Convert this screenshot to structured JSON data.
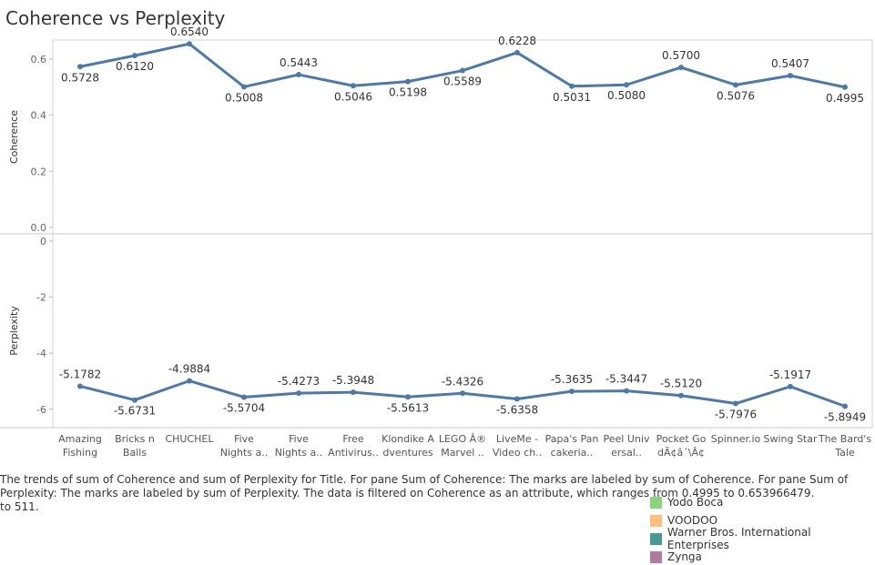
{
  "title": "Coherence vs Perplexity",
  "chart_data": {
    "type": "line",
    "categories": [
      [
        "Amazing",
        "Fishing"
      ],
      [
        "Bricks n",
        "Balls"
      ],
      [
        "CHUCHEL"
      ],
      [
        "Five",
        "Nights a.."
      ],
      [
        "Five",
        "Nights a.."
      ],
      [
        "Free",
        "Antivirus.."
      ],
      [
        "Klondike A",
        "dventures"
      ],
      [
        "LEGO Â®",
        "Marvel .."
      ],
      [
        "LiveMe -",
        "Video ch.."
      ],
      [
        "Papa's Pan",
        "cakeria.."
      ],
      [
        "Peel Univ",
        "ersal.."
      ],
      [
        "Pocket Go",
        "dÃ¢â´\\Â¢"
      ],
      [
        "Spinner.io"
      ],
      [
        "Swing Star"
      ],
      [
        "The Bard's",
        "Tale"
      ]
    ],
    "panes": [
      {
        "axis_title": "Coherence",
        "ylim": [
          0,
          0.7
        ],
        "ticks": [
          "0.0",
          "0.2",
          "0.4",
          "0.6"
        ],
        "tick_values": [
          0,
          0.2,
          0.4,
          0.6
        ],
        "values": [
          0.5728,
          0.612,
          0.654,
          0.5008,
          0.5443,
          0.5046,
          0.5198,
          0.5589,
          0.6228,
          0.5031,
          0.508,
          0.57,
          0.5076,
          0.5407,
          0.4995
        ],
        "labels": [
          "0.5728",
          "0.6120",
          "0.6540",
          "0.5008",
          "0.5443",
          "0.5046",
          "0.5198",
          "0.5589",
          "0.6228",
          "0.5031",
          "0.5080",
          "0.5700",
          "0.5076",
          "0.5407",
          "0.4995"
        ],
        "label_pos": [
          "below",
          "below",
          "above",
          "below",
          "above",
          "below",
          "below",
          "below",
          "above",
          "below",
          "below",
          "above",
          "below",
          "above",
          "below"
        ]
      },
      {
        "axis_title": "Perplexity",
        "ylim": [
          -6.3,
          0
        ],
        "ticks": [
          "0",
          "-2",
          "-4",
          "-6"
        ],
        "tick_values": [
          0,
          -2,
          -4,
          -6
        ],
        "values": [
          -5.1782,
          -5.6731,
          -4.9884,
          -5.5704,
          -5.4273,
          -5.3948,
          -5.5613,
          -5.4326,
          -5.6358,
          -5.3635,
          -5.3447,
          -5.512,
          -5.7976,
          -5.1917,
          -5.8949
        ],
        "labels": [
          "-5.1782",
          "-5.6731",
          "-4.9884",
          "-5.5704",
          "-5.4273",
          "-5.3948",
          "-5.5613",
          "-5.4326",
          "-5.6358",
          "-5.3635",
          "-5.3447",
          "-5.5120",
          "-5.7976",
          "-5.1917",
          "-5.8949"
        ],
        "label_pos": [
          "above",
          "below",
          "above",
          "below",
          "above",
          "above",
          "below",
          "above",
          "below",
          "above",
          "above",
          "above",
          "below",
          "above",
          "below"
        ]
      }
    ],
    "line_color": "#4e79a7",
    "grid": false
  },
  "caption": "The trends of sum of Coherence and sum of Perplexity for Title.  For pane Sum of Coherence:  The marks are labeled by sum of Coherence.  For pane Sum of Perplexity:  The marks are labeled by sum of Perplexity. The data is filtered on Coherence as an attribute, which ranges from 0.4995 to 0.653966479.",
  "caption_tail": "to 511.",
  "legend": [
    {
      "label": "Yodo Boca",
      "color": "#8cd17d"
    },
    {
      "label": "VOODOO",
      "color": "#ffbe7d"
    },
    {
      "label": "Warner Bros. International Enterprises",
      "color": "#499894"
    },
    {
      "label": "Zynga",
      "color": "#b07aa1"
    }
  ]
}
